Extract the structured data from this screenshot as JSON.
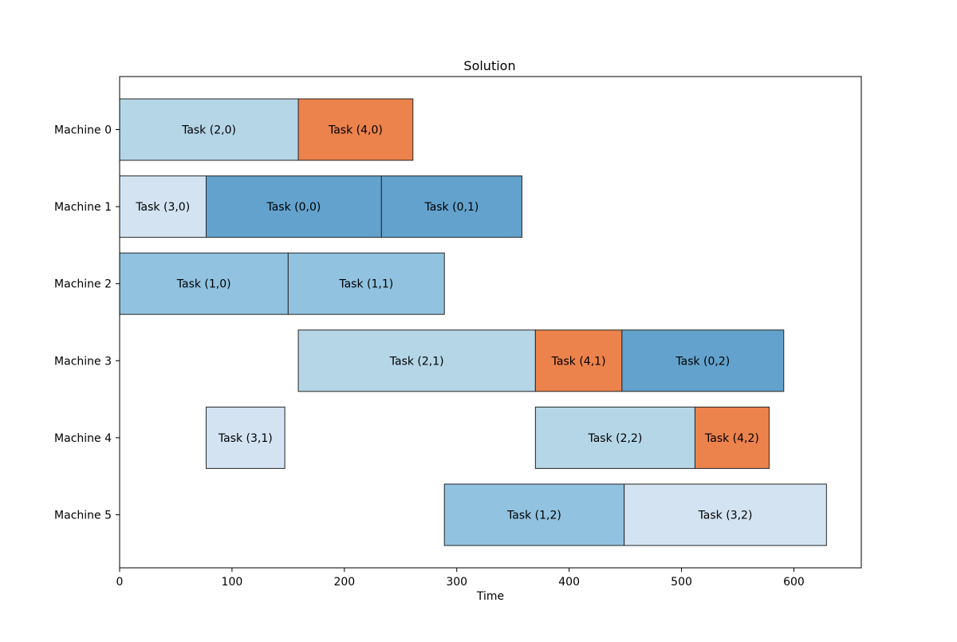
{
  "chart_data": {
    "type": "gantt",
    "title": "Solution",
    "xlabel": "Time",
    "ylabel": "",
    "xlim": [
      0,
      660
    ],
    "xticks": [
      0,
      100,
      200,
      300,
      400,
      500,
      600
    ],
    "machines": [
      "Machine 0",
      "Machine 1",
      "Machine 2",
      "Machine 3",
      "Machine 4",
      "Machine 5"
    ],
    "job_colors": {
      "0": "#63a2cd",
      "1": "#91c2e0",
      "2": "#b5d6e7",
      "3": "#d3e3f2",
      "4": "#ec824c"
    },
    "edge_color": "#262626",
    "tasks": [
      {
        "machine": 0,
        "job": 2,
        "label": "Task (2,0)",
        "start": 0,
        "end": 159
      },
      {
        "machine": 0,
        "job": 4,
        "label": "Task (4,0)",
        "start": 159,
        "end": 261
      },
      {
        "machine": 1,
        "job": 3,
        "label": "Task (3,0)",
        "start": 0,
        "end": 77
      },
      {
        "machine": 1,
        "job": 0,
        "label": "Task (0,0)",
        "start": 77,
        "end": 233
      },
      {
        "machine": 1,
        "job": 0,
        "label": "Task (0,1)",
        "start": 233,
        "end": 358
      },
      {
        "machine": 2,
        "job": 1,
        "label": "Task (1,0)",
        "start": 0,
        "end": 150
      },
      {
        "machine": 2,
        "job": 1,
        "label": "Task (1,1)",
        "start": 150,
        "end": 289
      },
      {
        "machine": 3,
        "job": 2,
        "label": "Task (2,1)",
        "start": 159,
        "end": 370
      },
      {
        "machine": 3,
        "job": 4,
        "label": "Task (4,1)",
        "start": 370,
        "end": 447
      },
      {
        "machine": 3,
        "job": 0,
        "label": "Task (0,2)",
        "start": 447,
        "end": 591
      },
      {
        "machine": 4,
        "job": 3,
        "label": "Task (3,1)",
        "start": 77,
        "end": 147
      },
      {
        "machine": 4,
        "job": 2,
        "label": "Task (2,2)",
        "start": 370,
        "end": 512
      },
      {
        "machine": 4,
        "job": 4,
        "label": "Task (4,2)",
        "start": 512,
        "end": 578
      },
      {
        "machine": 5,
        "job": 1,
        "label": "Task (1,2)",
        "start": 289,
        "end": 449
      },
      {
        "machine": 5,
        "job": 3,
        "label": "Task (3,2)",
        "start": 449,
        "end": 629
      }
    ]
  }
}
